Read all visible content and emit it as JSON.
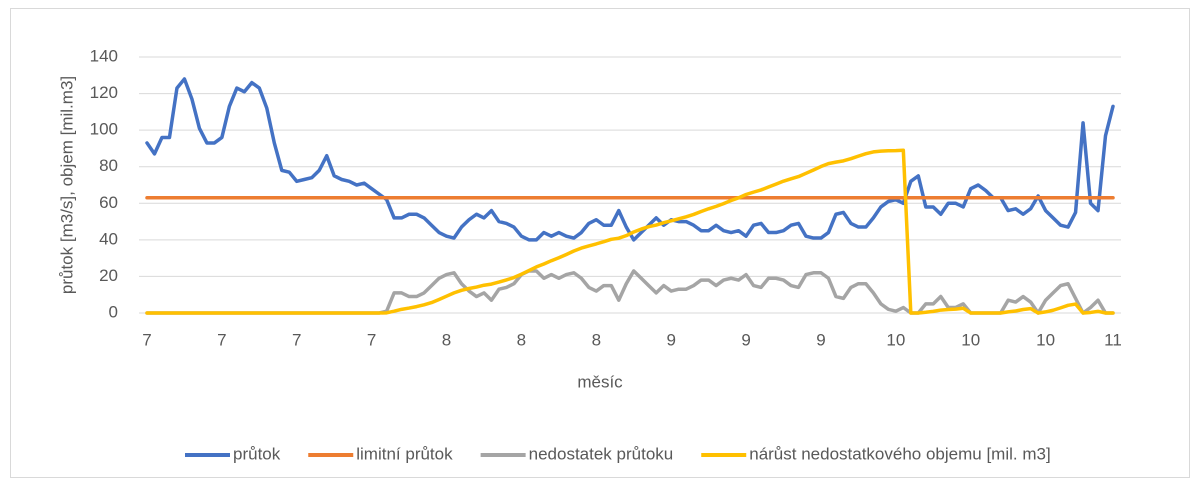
{
  "chart_data": {
    "type": "line",
    "xlabel": "měsíc",
    "ylabel": "průtok [m3/s], objem [mil.m3]",
    "categories": [
      "7",
      null,
      null,
      null,
      null,
      null,
      null,
      null,
      null,
      null,
      "7",
      null,
      null,
      null,
      null,
      null,
      null,
      null,
      null,
      null,
      "7",
      null,
      null,
      null,
      null,
      null,
      null,
      null,
      null,
      null,
      "7",
      null,
      null,
      null,
      null,
      null,
      null,
      null,
      null,
      null,
      "8",
      null,
      null,
      null,
      null,
      null,
      null,
      null,
      null,
      null,
      "8",
      null,
      null,
      null,
      null,
      null,
      null,
      null,
      null,
      null,
      "8",
      null,
      null,
      null,
      null,
      null,
      null,
      null,
      null,
      null,
      "9",
      null,
      null,
      null,
      null,
      null,
      null,
      null,
      null,
      null,
      "9",
      null,
      null,
      null,
      null,
      null,
      null,
      null,
      null,
      null,
      "9",
      null,
      null,
      null,
      null,
      null,
      null,
      null,
      null,
      null,
      "10",
      null,
      null,
      null,
      null,
      null,
      null,
      null,
      null,
      null,
      "10",
      null,
      null,
      null,
      null,
      null,
      null,
      null,
      null,
      null,
      "10",
      null,
      null,
      null,
      null,
      null,
      null,
      null,
      null,
      "11"
    ],
    "ylim": [
      0,
      140
    ],
    "yticks": [
      0,
      20,
      40,
      60,
      80,
      100,
      120,
      140
    ],
    "grid": true,
    "legend": "bottom",
    "series": [
      {
        "name": "průtok",
        "color": "#4472c4",
        "values": [
          93,
          87,
          96,
          96,
          123,
          128,
          117,
          101,
          93,
          93,
          96,
          113,
          123,
          121,
          126,
          123,
          112,
          93,
          78,
          77,
          72,
          73,
          74,
          78,
          86,
          75,
          73,
          72,
          70,
          71,
          68,
          65,
          62,
          52,
          52,
          54,
          54,
          52,
          48,
          44,
          42,
          41,
          47,
          51,
          54,
          52,
          56,
          50,
          49,
          47,
          42,
          40,
          40,
          44,
          42,
          44,
          42,
          41,
          44,
          49,
          51,
          48,
          48,
          56,
          47,
          40,
          44,
          48,
          52,
          48,
          51,
          50,
          50,
          48,
          45,
          45,
          48,
          45,
          44,
          45,
          42,
          48,
          49,
          44,
          44,
          45,
          48,
          49,
          42,
          41,
          41,
          44,
          54,
          55,
          49,
          47,
          47,
          52,
          58,
          61,
          62,
          60,
          72,
          75,
          58,
          58,
          54,
          60,
          60,
          58,
          68,
          70,
          67,
          63,
          63,
          56,
          57,
          54,
          57,
          64,
          56,
          52,
          48,
          47,
          55,
          104,
          60,
          56,
          97,
          113
        ]
      },
      {
        "name": "limitní průtok",
        "color": "#ed7d31",
        "values": [
          63,
          63,
          63,
          63,
          63,
          63,
          63,
          63,
          63,
          63,
          63,
          63,
          63,
          63,
          63,
          63,
          63,
          63,
          63,
          63,
          63,
          63,
          63,
          63,
          63,
          63,
          63,
          63,
          63,
          63,
          63,
          63,
          63,
          63,
          63,
          63,
          63,
          63,
          63,
          63,
          63,
          63,
          63,
          63,
          63,
          63,
          63,
          63,
          63,
          63,
          63,
          63,
          63,
          63,
          63,
          63,
          63,
          63,
          63,
          63,
          63,
          63,
          63,
          63,
          63,
          63,
          63,
          63,
          63,
          63,
          63,
          63,
          63,
          63,
          63,
          63,
          63,
          63,
          63,
          63,
          63,
          63,
          63,
          63,
          63,
          63,
          63,
          63,
          63,
          63,
          63,
          63,
          63,
          63,
          63,
          63,
          63,
          63,
          63,
          63,
          63,
          63,
          63,
          63,
          63,
          63,
          63,
          63,
          63,
          63,
          63,
          63,
          63,
          63,
          63,
          63,
          63,
          63,
          63,
          63,
          63,
          63,
          63,
          63,
          63,
          63,
          63,
          63,
          63,
          63
        ]
      },
      {
        "name": "nedostatek průtoku",
        "color": "#a5a5a5",
        "values": [
          0,
          0,
          0,
          0,
          0,
          0,
          0,
          0,
          0,
          0,
          0,
          0,
          0,
          0,
          0,
          0,
          0,
          0,
          0,
          0,
          0,
          0,
          0,
          0,
          0,
          0,
          0,
          0,
          0,
          0,
          0,
          0,
          1,
          11,
          11,
          9,
          9,
          11,
          15,
          19,
          21,
          22,
          16,
          12,
          9,
          11,
          7,
          13,
          14,
          16,
          21,
          23,
          23,
          19,
          21,
          19,
          21,
          22,
          19,
          14,
          12,
          15,
          15,
          7,
          16,
          23,
          19,
          15,
          11,
          15,
          12,
          13,
          13,
          15,
          18,
          18,
          15,
          18,
          19,
          18,
          21,
          15,
          14,
          19,
          19,
          18,
          15,
          14,
          21,
          22,
          22,
          19,
          9,
          8,
          14,
          16,
          16,
          11,
          5,
          2,
          1,
          3,
          0,
          0,
          5,
          5,
          9,
          3,
          3,
          5,
          0,
          0,
          0,
          0,
          0,
          7,
          6,
          9,
          6,
          0,
          7,
          11,
          15,
          16,
          8,
          0,
          3,
          7,
          0,
          0
        ]
      },
      {
        "name": "nárůst nedostatkového objemu [mil. m3]",
        "color": "#ffc000",
        "values": [
          0,
          0,
          0,
          0,
          0,
          0,
          0,
          0,
          0,
          0,
          0,
          0,
          0,
          0,
          0,
          0,
          0,
          0,
          0,
          0,
          0,
          0,
          0,
          0,
          0,
          0,
          0,
          0,
          0,
          0,
          0,
          0,
          0.1,
          1.0,
          2.0,
          2.7,
          3.5,
          4.5,
          5.7,
          7.4,
          9.2,
          11.0,
          12.4,
          13.4,
          14.2,
          15.2,
          15.8,
          16.9,
          18.1,
          19.4,
          21.2,
          23.2,
          25.2,
          26.8,
          28.6,
          30.2,
          32.0,
          33.9,
          35.5,
          36.7,
          37.8,
          39.0,
          40.3,
          40.9,
          42.3,
          44.3,
          45.9,
          47.2,
          48.1,
          49.4,
          50.4,
          51.5,
          52.6,
          53.9,
          55.5,
          57.0,
          58.3,
          59.8,
          61.5,
          63.0,
          64.8,
          66.1,
          67.3,
          68.9,
          70.5,
          72.1,
          73.4,
          74.6,
          76.4,
          78.2,
          80.1,
          81.7,
          82.5,
          83.2,
          84.4,
          85.8,
          87.1,
          88.1,
          88.5,
          88.7,
          88.8,
          89.0,
          0,
          0,
          0.4,
          0.9,
          1.6,
          1.9,
          2.1,
          2.6,
          0,
          0,
          0,
          0,
          0,
          0.6,
          1.1,
          1.9,
          2.4,
          0,
          0.6,
          1.5,
          2.8,
          4.2,
          4.9,
          0,
          0.3,
          0.9,
          0,
          0
        ]
      }
    ]
  }
}
